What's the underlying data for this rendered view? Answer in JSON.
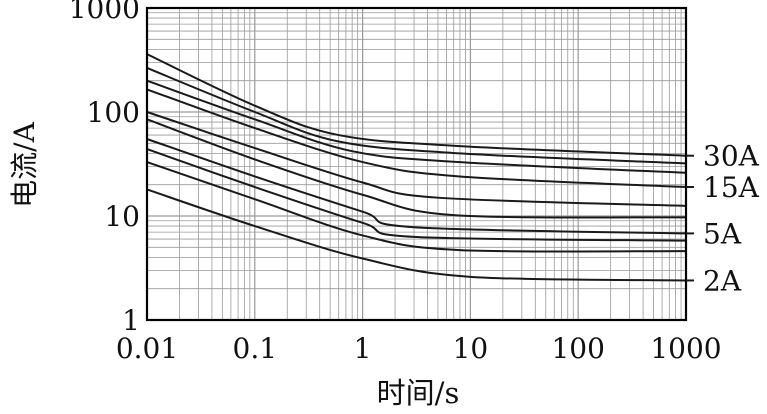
{
  "chart_data": {
    "type": "line",
    "xlabel": "时间/s",
    "ylabel": "电流/A",
    "x_scale": "log",
    "y_scale": "log",
    "xlim": [
      0.01,
      1000
    ],
    "ylim": [
      1,
      1000
    ],
    "x_ticks": [
      {
        "value": 0.01,
        "label": "0.01"
      },
      {
        "value": 0.1,
        "label": "0.1"
      },
      {
        "value": 1,
        "label": "1"
      },
      {
        "value": 10,
        "label": "10"
      },
      {
        "value": 100,
        "label": "100"
      },
      {
        "value": 1000,
        "label": "1000"
      }
    ],
    "y_ticks": [
      {
        "value": 1,
        "label": "1"
      },
      {
        "value": 10,
        "label": "10"
      },
      {
        "value": 100,
        "label": "100"
      },
      {
        "value": 1000,
        "label": "1000"
      }
    ],
    "grid": true,
    "line_color": "#1a1a1a",
    "grid_color": "#9a9a9a",
    "series": [
      {
        "label": "30A",
        "points": [
          [
            0.01,
            360
          ],
          [
            0.1,
            115
          ],
          [
            0.6,
            60
          ],
          [
            8,
            47
          ],
          [
            1000,
            38
          ]
        ]
      },
      {
        "points": [
          [
            0.01,
            265
          ],
          [
            0.1,
            100
          ],
          [
            0.6,
            52
          ],
          [
            8,
            40
          ],
          [
            1000,
            32
          ]
        ]
      },
      {
        "points": [
          [
            0.01,
            200
          ],
          [
            0.1,
            85
          ],
          [
            0.8,
            42
          ],
          [
            8,
            33
          ],
          [
            1000,
            26
          ]
        ]
      },
      {
        "label": "15A",
        "points": [
          [
            0.01,
            165
          ],
          [
            0.1,
            70
          ],
          [
            1,
            33
          ],
          [
            8,
            24
          ],
          [
            1000,
            19
          ]
        ]
      },
      {
        "points": [
          [
            0.01,
            100
          ],
          [
            0.1,
            45
          ],
          [
            1,
            21
          ],
          [
            5,
            15
          ],
          [
            1000,
            12.5
          ]
        ]
      },
      {
        "points": [
          [
            0.01,
            85
          ],
          [
            0.1,
            35
          ],
          [
            1,
            16
          ],
          [
            7,
            10.2
          ],
          [
            1000,
            9.7
          ]
        ]
      },
      {
        "label": "5A",
        "points": [
          [
            0.01,
            55
          ],
          [
            0.1,
            24
          ],
          [
            1,
            11
          ],
          [
            3,
            7.8
          ],
          [
            1000,
            6.8
          ]
        ]
      },
      {
        "points": [
          [
            0.01,
            44
          ],
          [
            0.1,
            19
          ],
          [
            1,
            8.6
          ],
          [
            3,
            6.3
          ],
          [
            1000,
            5.8
          ]
        ]
      },
      {
        "points": [
          [
            0.01,
            33
          ],
          [
            0.1,
            14.5
          ],
          [
            1,
            6.5
          ],
          [
            8,
            4.7
          ],
          [
            1000,
            4.6
          ]
        ]
      },
      {
        "label": "2A",
        "points": [
          [
            0.01,
            18
          ],
          [
            0.1,
            8
          ],
          [
            1,
            3.9
          ],
          [
            10,
            2.6
          ],
          [
            1000,
            2.4
          ]
        ]
      }
    ]
  }
}
